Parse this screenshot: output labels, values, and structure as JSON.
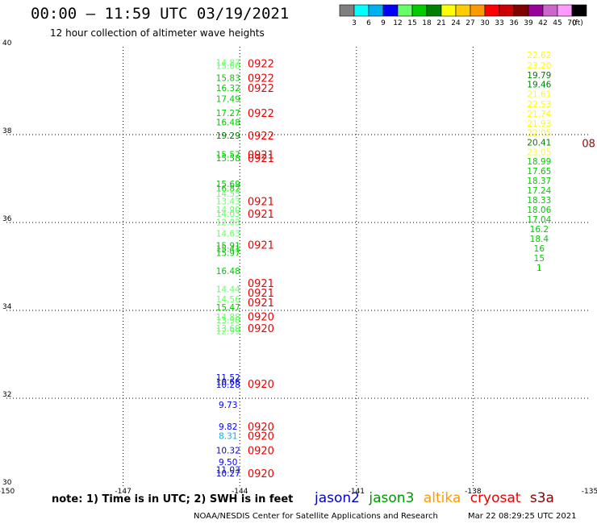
{
  "header": {
    "title": "00:00 – 11:59 UTC 03/19/2021",
    "subtitle": "12 hour collection of altimeter wave heights"
  },
  "colorbar": {
    "unit": "(ft)",
    "levels": [
      {
        "label": "3",
        "color": "#7f7f7f"
      },
      {
        "label": "6",
        "color": "#00ffff"
      },
      {
        "label": "9",
        "color": "#00b0f0"
      },
      {
        "label": "12",
        "color": "#0000ff"
      },
      {
        "label": "15",
        "color": "#66ff66"
      },
      {
        "label": "18",
        "color": "#00cc00"
      },
      {
        "label": "21",
        "color": "#008000"
      },
      {
        "label": "24",
        "color": "#ffff00"
      },
      {
        "label": "27",
        "color": "#ffcc00"
      },
      {
        "label": "30",
        "color": "#ff9900"
      },
      {
        "label": "33",
        "color": "#ff0000"
      },
      {
        "label": "36",
        "color": "#cc0000"
      },
      {
        "label": "39",
        "color": "#800000"
      },
      {
        "label": "42",
        "color": "#990099"
      },
      {
        "label": "45",
        "color": "#cc66cc"
      },
      {
        "label": "70",
        "color": "#ff99ff"
      },
      {
        "label": "",
        "color": "#000000"
      }
    ]
  },
  "note": "note: 1) Time is in UTC; 2) SWH is in feet",
  "satellites": [
    {
      "name": "jason2",
      "color": "#0000cc"
    },
    {
      "name": "jason3",
      "color": "#009900"
    },
    {
      "name": "altika",
      "color": "#ff9900"
    },
    {
      "name": "cryosat",
      "color": "#ee0000"
    },
    {
      "name": "s3a",
      "color": "#880000"
    }
  ],
  "credit": "NOAA/NESDIS Center for Satellite Applications and Research",
  "timestamp": "Mar 22 08:29:25 UTC 2021",
  "chart_data": {
    "type": "scatter",
    "xlim": [
      -150,
      -135
    ],
    "ylim": [
      30,
      40
    ],
    "x_ticks": [
      -150,
      -147,
      -144,
      -141,
      -138,
      -135
    ],
    "x_tick_labels": [
      "-150",
      "-147",
      "-144",
      "-141",
      "-138",
      "-135"
    ],
    "y_ticks": [
      30,
      32,
      34,
      36,
      38,
      40
    ],
    "y_tick_labels": [
      "30",
      "32",
      "34",
      "36",
      "38",
      "40"
    ],
    "grid": true,
    "points": [
      {
        "lon": -144.3,
        "lat": 39.64,
        "value": "14.87",
        "color": "#66ff66"
      },
      {
        "lon": -144.3,
        "lat": 39.57,
        "value": "15.60",
        "color": "#66ff66"
      },
      {
        "lon": -144.3,
        "lat": 39.29,
        "value": "15.83",
        "color": "#00cc00"
      },
      {
        "lon": -144.3,
        "lat": 39.06,
        "value": "16.32",
        "color": "#00cc00"
      },
      {
        "lon": -144.3,
        "lat": 38.82,
        "value": "17.49",
        "color": "#00cc00"
      },
      {
        "lon": -144.3,
        "lat": 38.5,
        "value": "17.27",
        "color": "#00cc00"
      },
      {
        "lon": -144.3,
        "lat": 38.28,
        "value": "16.48",
        "color": "#00cc00"
      },
      {
        "lon": -144.3,
        "lat": 37.98,
        "value": "19.29",
        "color": "#008000"
      },
      {
        "lon": -144.3,
        "lat": 37.55,
        "value": "15.57",
        "color": "#00cc00"
      },
      {
        "lon": -144.3,
        "lat": 37.47,
        "value": "15.58",
        "color": "#00cc00"
      },
      {
        "lon": -144.3,
        "lat": 36.88,
        "value": "15.69",
        "color": "#00cc00"
      },
      {
        "lon": -144.3,
        "lat": 36.78,
        "value": "16.82",
        "color": "#00cc00"
      },
      {
        "lon": -144.3,
        "lat": 36.66,
        "value": "14.55",
        "color": "#66ff66"
      },
      {
        "lon": -144.3,
        "lat": 36.49,
        "value": "13.43",
        "color": "#66ff66"
      },
      {
        "lon": -144.3,
        "lat": 36.29,
        "value": "14.90",
        "color": "#66ff66"
      },
      {
        "lon": -144.3,
        "lat": 36.2,
        "value": "14.03",
        "color": "#66ff66"
      },
      {
        "lon": -144.3,
        "lat": 36.01,
        "value": "12.03",
        "color": "#66ff66"
      },
      {
        "lon": -144.3,
        "lat": 35.75,
        "value": "14.63",
        "color": "#66ff66"
      },
      {
        "lon": -144.3,
        "lat": 35.48,
        "value": "15.91",
        "color": "#00cc00"
      },
      {
        "lon": -144.3,
        "lat": 35.4,
        "value": "15.41",
        "color": "#00cc00"
      },
      {
        "lon": -144.3,
        "lat": 35.31,
        "value": "15.97",
        "color": "#00cc00"
      },
      {
        "lon": -144.3,
        "lat": 34.9,
        "value": "16.48",
        "color": "#00cc00"
      },
      {
        "lon": -144.3,
        "lat": 34.49,
        "value": "14.44",
        "color": "#66ff66"
      },
      {
        "lon": -144.3,
        "lat": 34.26,
        "value": "14.56",
        "color": "#66ff66"
      },
      {
        "lon": -144.3,
        "lat": 34.07,
        "value": "15.47",
        "color": "#00cc00"
      },
      {
        "lon": -144.3,
        "lat": 33.85,
        "value": "14.88",
        "color": "#66ff66"
      },
      {
        "lon": -144.3,
        "lat": 33.78,
        "value": "13.90",
        "color": "#66ff66"
      },
      {
        "lon": -144.3,
        "lat": 33.6,
        "value": "13.69",
        "color": "#66ff66"
      },
      {
        "lon": -144.3,
        "lat": 33.53,
        "value": "12.99",
        "color": "#66ff66"
      },
      {
        "lon": -144.3,
        "lat": 32.48,
        "value": "11.52",
        "color": "#0000ff"
      },
      {
        "lon": -144.3,
        "lat": 32.38,
        "value": "10.66",
        "color": "#0000ff"
      },
      {
        "lon": -144.3,
        "lat": 32.31,
        "value": "10.28",
        "color": "#0000ff"
      },
      {
        "lon": -144.3,
        "lat": 31.85,
        "value": "9.73",
        "color": "#0000ff"
      },
      {
        "lon": -144.3,
        "lat": 31.36,
        "value": "9.82",
        "color": "#0000ff"
      },
      {
        "lon": -144.3,
        "lat": 31.15,
        "value": "8.31",
        "color": "#00b0f0"
      },
      {
        "lon": -144.3,
        "lat": 30.82,
        "value": "10.32",
        "color": "#0000ff"
      },
      {
        "lon": -144.3,
        "lat": 30.55,
        "value": "9.50",
        "color": "#0000ff"
      },
      {
        "lon": -144.3,
        "lat": 30.38,
        "value": "11.03",
        "color": "#0000ff"
      },
      {
        "lon": -144.3,
        "lat": 30.29,
        "value": "10.27",
        "color": "#0000ff"
      },
      {
        "lon": -136.3,
        "lat": 39.82,
        "value": "22.62",
        "color": "#ffff00"
      },
      {
        "lon": -136.3,
        "lat": 39.58,
        "value": "23.20",
        "color": "#ffff00"
      },
      {
        "lon": -136.3,
        "lat": 39.36,
        "value": "19.79",
        "color": "#008000"
      },
      {
        "lon": -136.3,
        "lat": 39.15,
        "value": "19.46",
        "color": "#008000"
      },
      {
        "lon": -136.3,
        "lat": 38.93,
        "value": "21.61",
        "color": "#ffff00"
      },
      {
        "lon": -136.3,
        "lat": 38.7,
        "value": "22.53",
        "color": "#ffff00"
      },
      {
        "lon": -136.3,
        "lat": 38.48,
        "value": "21.74",
        "color": "#ffff00"
      },
      {
        "lon": -136.3,
        "lat": 38.26,
        "value": "21.93",
        "color": "#ffff00"
      },
      {
        "lon": -136.3,
        "lat": 38.05,
        "value": "22.05",
        "color": "#ffff00"
      },
      {
        "lon": -136.3,
        "lat": 37.83,
        "value": "20.41",
        "color": "#008000"
      },
      {
        "lon": -136.3,
        "lat": 37.61,
        "value": "23.05",
        "color": "#ffff00"
      },
      {
        "lon": -136.3,
        "lat": 37.39,
        "value": "18.99",
        "color": "#00cc00"
      },
      {
        "lon": -136.3,
        "lat": 37.17,
        "value": "17.65",
        "color": "#00cc00"
      },
      {
        "lon": -136.3,
        "lat": 36.95,
        "value": "18.37",
        "color": "#00cc00"
      },
      {
        "lon": -136.3,
        "lat": 36.73,
        "value": "17.24",
        "color": "#00cc00"
      },
      {
        "lon": -136.3,
        "lat": 36.51,
        "value": "18.33",
        "color": "#00cc00"
      },
      {
        "lon": -136.3,
        "lat": 36.29,
        "value": "18.06",
        "color": "#00cc00"
      },
      {
        "lon": -136.3,
        "lat": 36.07,
        "value": "17.04",
        "color": "#00cc00"
      },
      {
        "lon": -136.3,
        "lat": 35.85,
        "value": "16.2",
        "color": "#00cc00"
      },
      {
        "lon": -136.3,
        "lat": 35.63,
        "value": "18.4",
        "color": "#00cc00"
      },
      {
        "lon": -136.3,
        "lat": 35.41,
        "value": "16",
        "color": "#00cc00"
      },
      {
        "lon": -136.3,
        "lat": 35.19,
        "value": "15",
        "color": "#00cc00"
      },
      {
        "lon": -136.3,
        "lat": 34.97,
        "value": "1",
        "color": "#00cc00"
      }
    ],
    "time_labels": [
      {
        "lon": -143.8,
        "lat": 39.62,
        "value": "0922",
        "color": "#ee0000"
      },
      {
        "lon": -143.8,
        "lat": 39.29,
        "value": "0922",
        "color": "#ee0000"
      },
      {
        "lon": -143.8,
        "lat": 39.06,
        "value": "0922",
        "color": "#ee0000"
      },
      {
        "lon": -143.8,
        "lat": 38.5,
        "value": "0922",
        "color": "#ee0000"
      },
      {
        "lon": -143.8,
        "lat": 37.98,
        "value": "0922",
        "color": "#ee0000"
      },
      {
        "lon": -143.8,
        "lat": 37.55,
        "value": "0921",
        "color": "#ee0000"
      },
      {
        "lon": -143.8,
        "lat": 37.47,
        "value": "0921",
        "color": "#ee0000"
      },
      {
        "lon": -143.8,
        "lat": 36.49,
        "value": "0921",
        "color": "#ee0000"
      },
      {
        "lon": -143.8,
        "lat": 36.2,
        "value": "0921",
        "color": "#ee0000"
      },
      {
        "lon": -143.8,
        "lat": 35.5,
        "value": "0921",
        "color": "#ee0000"
      },
      {
        "lon": -143.8,
        "lat": 34.62,
        "value": "0921",
        "color": "#ee0000"
      },
      {
        "lon": -143.8,
        "lat": 34.4,
        "value": "0921",
        "color": "#ee0000"
      },
      {
        "lon": -143.8,
        "lat": 34.18,
        "value": "0921",
        "color": "#ee0000"
      },
      {
        "lon": -143.8,
        "lat": 33.86,
        "value": "0920",
        "color": "#ee0000"
      },
      {
        "lon": -143.8,
        "lat": 33.6,
        "value": "0920",
        "color": "#ee0000"
      },
      {
        "lon": -143.8,
        "lat": 32.33,
        "value": "0920",
        "color": "#ee0000"
      },
      {
        "lon": -143.8,
        "lat": 31.36,
        "value": "0920",
        "color": "#ee0000"
      },
      {
        "lon": -143.8,
        "lat": 31.15,
        "value": "0920",
        "color": "#ee0000"
      },
      {
        "lon": -143.8,
        "lat": 30.82,
        "value": "0920",
        "color": "#ee0000"
      },
      {
        "lon": -143.8,
        "lat": 30.29,
        "value": "0920",
        "color": "#ee0000"
      },
      {
        "lon": -135.2,
        "lat": 37.81,
        "value": "08",
        "color": "#aa0000"
      }
    ]
  }
}
